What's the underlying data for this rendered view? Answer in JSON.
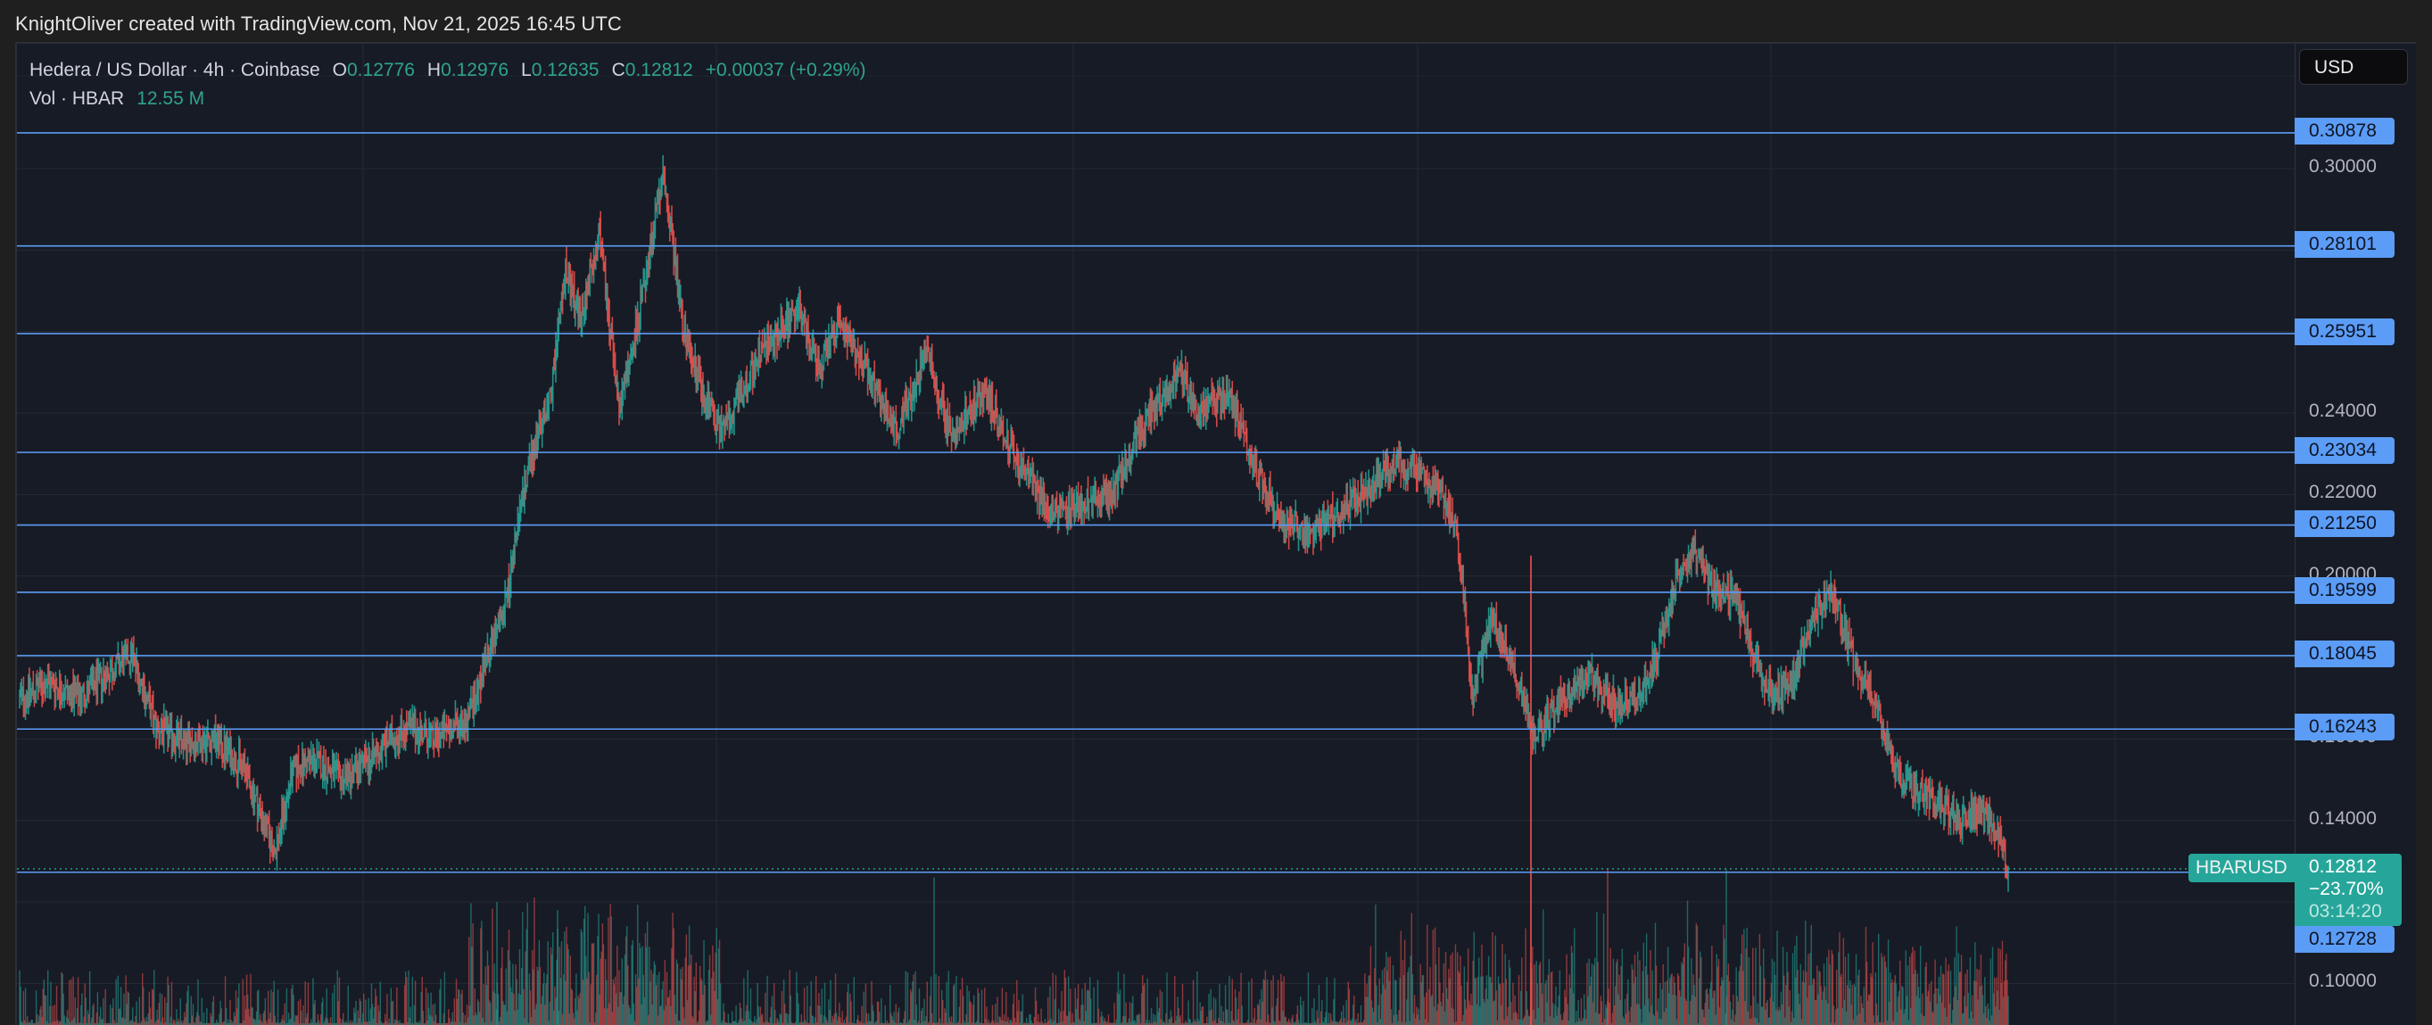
{
  "attribution": "KnightOliver created with TradingView.com, Nov 21, 2025 16:45 UTC",
  "legend": {
    "symbol_desc": "Hedera / US Dollar · 4h · Coinbase",
    "o_label": "O",
    "o_value": "0.12776",
    "h_label": "H",
    "h_value": "0.12976",
    "l_label": "L",
    "l_value": "0.12635",
    "c_label": "C",
    "c_value": "0.12812",
    "change": "+0.00037 (+0.29%)",
    "vol_label": "Vol · HBAR",
    "vol_value": "12.55 M"
  },
  "currency_button": "USD",
  "symbol_tag": "HBARUSD",
  "last_price": {
    "price": "0.12812",
    "change_pct": "−23.70%",
    "countdown": "03:14:20"
  },
  "colors": {
    "background": "#171b25",
    "up": "#26a69a",
    "down": "#ef5350",
    "level_line": "#5b9cf6",
    "grid": "#262a33"
  },
  "axis_ticks": [
    "0.30000",
    "0.24000",
    "0.22000",
    "0.20000",
    "0.16000",
    "0.14000",
    "0.10000"
  ],
  "level_labels": [
    "0.30878",
    "0.28101",
    "0.25951",
    "0.23034",
    "0.21250",
    "0.19599",
    "0.18045",
    "0.16243",
    "0.12728"
  ],
  "chart_data": {
    "type": "candlestick",
    "title": "Hedera / US Dollar · 4h · Coinbase",
    "symbol": "HBARUSD",
    "interval": "4h",
    "ylabel": "USD",
    "ylim": [
      0.09,
      0.32
    ],
    "y_ticks": [
      0.1,
      0.14,
      0.16,
      0.2,
      0.22,
      0.24,
      0.3
    ],
    "horizontal_levels": [
      0.30878,
      0.28101,
      0.25951,
      0.23034,
      0.2125,
      0.19599,
      0.18045,
      0.16243,
      0.12728
    ],
    "last": {
      "open": 0.12776,
      "high": 0.12976,
      "low": 0.12635,
      "close": 0.12812,
      "change": 0.00037,
      "change_pct": 0.29,
      "volume": "12.55 M"
    },
    "period_change_pct": -23.7,
    "price_path_keypoints": [
      [
        0,
        0.17
      ],
      [
        30,
        0.174
      ],
      [
        60,
        0.17
      ],
      [
        90,
        0.176
      ],
      [
        115,
        0.181
      ],
      [
        140,
        0.163
      ],
      [
        170,
        0.159
      ],
      [
        200,
        0.16
      ],
      [
        230,
        0.153
      ],
      [
        262,
        0.132
      ],
      [
        280,
        0.152
      ],
      [
        300,
        0.155
      ],
      [
        330,
        0.15
      ],
      [
        360,
        0.155
      ],
      [
        380,
        0.16
      ],
      [
        400,
        0.163
      ],
      [
        425,
        0.16
      ],
      [
        460,
        0.165
      ],
      [
        480,
        0.18
      ],
      [
        500,
        0.195
      ],
      [
        520,
        0.225
      ],
      [
        545,
        0.245
      ],
      [
        560,
        0.275
      ],
      [
        575,
        0.262
      ],
      [
        595,
        0.285
      ],
      [
        615,
        0.24
      ],
      [
        640,
        0.27
      ],
      [
        660,
        0.3
      ],
      [
        680,
        0.262
      ],
      [
        700,
        0.245
      ],
      [
        720,
        0.235
      ],
      [
        760,
        0.255
      ],
      [
        800,
        0.265
      ],
      [
        820,
        0.25
      ],
      [
        840,
        0.262
      ],
      [
        870,
        0.25
      ],
      [
        900,
        0.235
      ],
      [
        930,
        0.255
      ],
      [
        955,
        0.235
      ],
      [
        990,
        0.245
      ],
      [
        1020,
        0.23
      ],
      [
        1060,
        0.215
      ],
      [
        1090,
        0.218
      ],
      [
        1120,
        0.22
      ],
      [
        1160,
        0.24
      ],
      [
        1190,
        0.25
      ],
      [
        1210,
        0.24
      ],
      [
        1240,
        0.245
      ],
      [
        1270,
        0.225
      ],
      [
        1290,
        0.215
      ],
      [
        1320,
        0.21
      ],
      [
        1350,
        0.215
      ],
      [
        1380,
        0.22
      ],
      [
        1410,
        0.228
      ],
      [
        1440,
        0.225
      ],
      [
        1470,
        0.215
      ],
      [
        1480,
        0.2
      ],
      [
        1490,
        0.17
      ],
      [
        1510,
        0.19
      ],
      [
        1530,
        0.18
      ],
      [
        1555,
        0.16
      ],
      [
        1580,
        0.17
      ],
      [
        1610,
        0.175
      ],
      [
        1640,
        0.168
      ],
      [
        1660,
        0.17
      ],
      [
        1680,
        0.18
      ],
      [
        1700,
        0.2
      ],
      [
        1720,
        0.205
      ],
      [
        1740,
        0.196
      ],
      [
        1760,
        0.195
      ],
      [
        1780,
        0.18
      ],
      [
        1800,
        0.17
      ],
      [
        1820,
        0.175
      ],
      [
        1840,
        0.19
      ],
      [
        1860,
        0.196
      ],
      [
        1880,
        0.18
      ],
      [
        1900,
        0.17
      ],
      [
        1930,
        0.15
      ],
      [
        1960,
        0.145
      ],
      [
        1990,
        0.14
      ],
      [
        2010,
        0.143
      ],
      [
        2030,
        0.137
      ],
      [
        2040,
        0.128
      ]
    ],
    "volume_panel": true
  }
}
